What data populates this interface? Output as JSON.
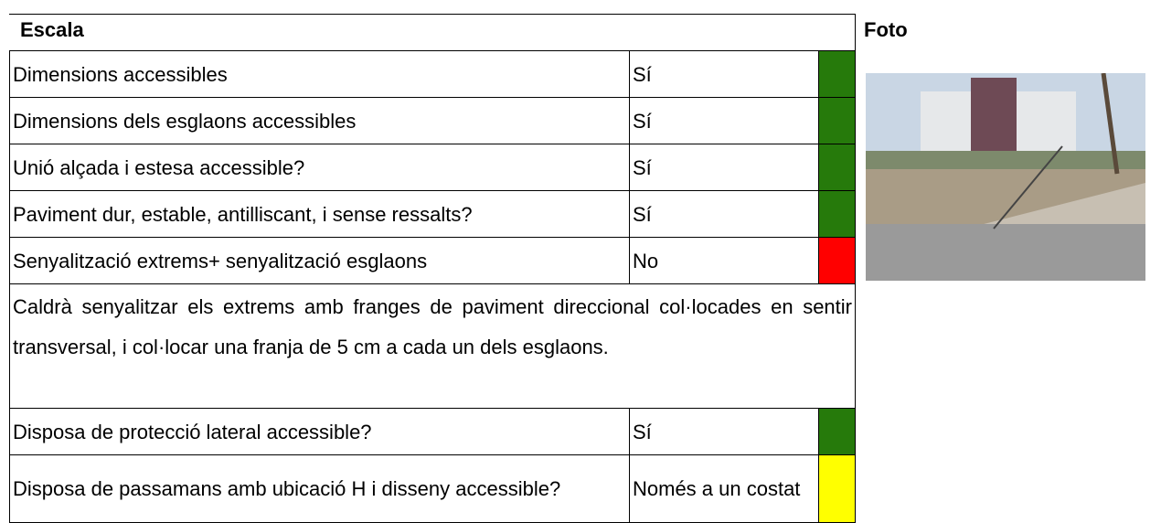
{
  "header": {
    "title": "Escala",
    "photo": "Foto"
  },
  "rows": [
    {
      "label": "Dimensions accessibles",
      "value": "Sí",
      "color": "#267a0b"
    },
    {
      "label": "Dimensions dels esglaons accessibles",
      "value": "Sí",
      "color": "#267a0b"
    },
    {
      "label": "Unió alçada i estesa accessible?",
      "value": "Sí",
      "color": "#267a0b"
    },
    {
      "label": "Paviment dur, estable, antilliscant, i sense ressalts?",
      "value": "Sí",
      "color": "#267a0b"
    },
    {
      "label": "Senyalització extrems+ senyalització esglaons",
      "value": "No",
      "color": "#ff0000"
    }
  ],
  "note": "Caldrà senyalitzar els extrems amb franges de paviment direccional col·locades en sentir transversal, i col·locar una franja de 5 cm a cada un dels esglaons.",
  "rows_after": [
    {
      "label": "Disposa de protecció lateral accessible?",
      "value": "Sí",
      "color": "#267a0b"
    },
    {
      "label": "Disposa de passamans amb ubicació H i disseny accessible?",
      "value": "Només a un costat",
      "color": "#ffff00"
    }
  ]
}
